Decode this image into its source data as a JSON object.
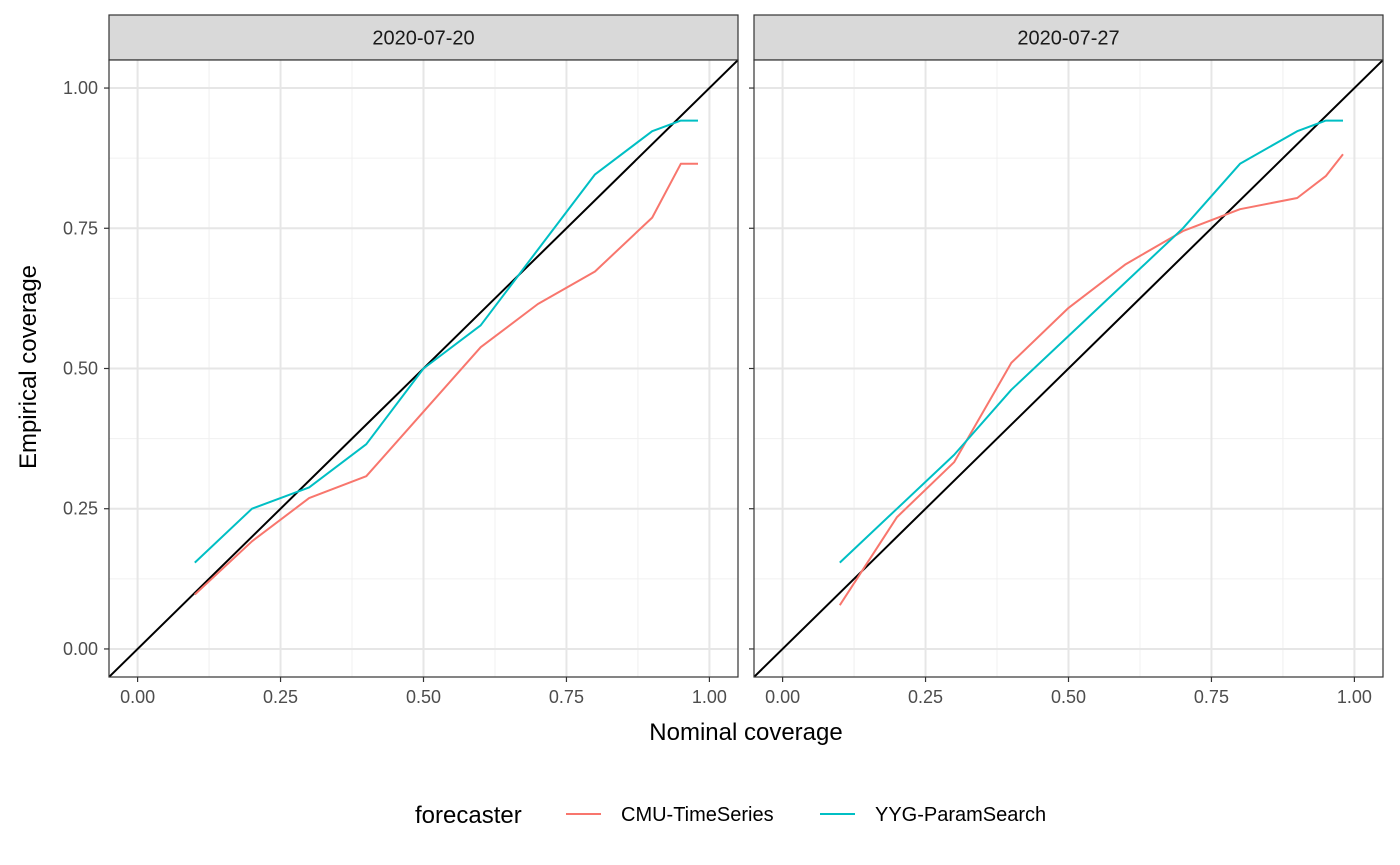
{
  "chart_data": {
    "type": "line",
    "xlabel": "Nominal coverage",
    "ylabel": "Empirical coverage",
    "xlim": [
      -0.05,
      1.05
    ],
    "ylim": [
      -0.05,
      1.05
    ],
    "x_ticks": [
      "0.00",
      "0.25",
      "0.50",
      "0.75",
      "1.00"
    ],
    "y_ticks": [
      "0.00",
      "0.25",
      "0.50",
      "0.75",
      "1.00"
    ],
    "grid": true,
    "reference_line": "identity (y = x)",
    "legend": {
      "title": "forecaster",
      "position": "bottom",
      "entries": [
        "CMU-TimeSeries",
        "YYG-ParamSearch"
      ]
    },
    "colors": {
      "CMU-TimeSeries": "#F8766D",
      "YYG-ParamSearch": "#00BFC4",
      "reference": "#000000"
    },
    "panels": [
      {
        "label": "2020-07-20",
        "series": [
          {
            "name": "CMU-TimeSeries",
            "x": [
              0.1,
              0.2,
              0.3,
              0.4,
              0.5,
              0.6,
              0.7,
              0.8,
              0.9,
              0.95,
              0.98
            ],
            "y": [
              0.097,
              0.192,
              0.269,
              0.308,
              0.423,
              0.538,
              0.615,
              0.673,
              0.769,
              0.865,
              0.865
            ]
          },
          {
            "name": "YYG-ParamSearch",
            "x": [
              0.1,
              0.2,
              0.3,
              0.4,
              0.5,
              0.6,
              0.7,
              0.8,
              0.9,
              0.95,
              0.98
            ],
            "y": [
              0.154,
              0.25,
              0.288,
              0.365,
              0.5,
              0.577,
              0.712,
              0.846,
              0.923,
              0.942,
              0.942
            ]
          }
        ]
      },
      {
        "label": "2020-07-27",
        "series": [
          {
            "name": "CMU-TimeSeries",
            "x": [
              0.1,
              0.2,
              0.3,
              0.4,
              0.5,
              0.6,
              0.7,
              0.8,
              0.9,
              0.95,
              0.98
            ],
            "y": [
              0.078,
              0.235,
              0.333,
              0.51,
              0.608,
              0.686,
              0.745,
              0.784,
              0.804,
              0.843,
              0.882
            ]
          },
          {
            "name": "YYG-ParamSearch",
            "x": [
              0.1,
              0.2,
              0.3,
              0.4,
              0.5,
              0.6,
              0.7,
              0.8,
              0.9,
              0.95,
              0.98
            ],
            "y": [
              0.154,
              0.25,
              0.346,
              0.462,
              0.558,
              0.654,
              0.75,
              0.865,
              0.923,
              0.942,
              0.942
            ]
          }
        ]
      }
    ]
  }
}
